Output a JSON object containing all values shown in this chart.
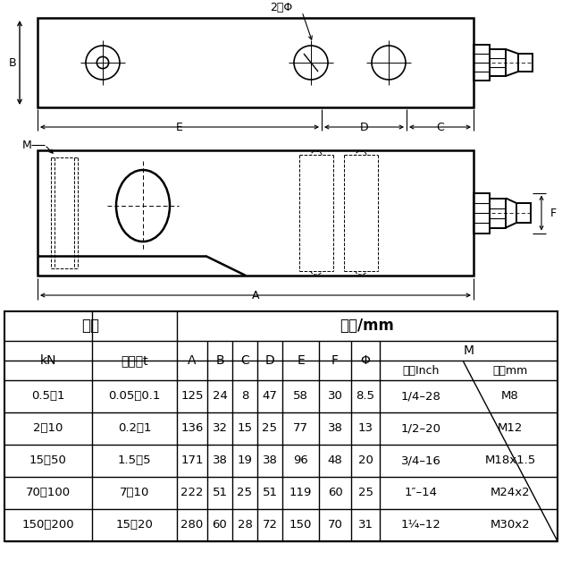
{
  "table_data": [
    [
      "0.5～1",
      "0.05～0.1",
      "125",
      "24",
      "8",
      "47",
      "58",
      "30",
      "8.5",
      "1/4–28",
      "M8"
    ],
    [
      "2～10",
      "0.2～1",
      "136",
      "32",
      "15",
      "25",
      "77",
      "38",
      "13",
      "1/2–20",
      "M12"
    ],
    [
      "15～50",
      "1.5～5",
      "171",
      "38",
      "19",
      "38",
      "96",
      "48",
      "20",
      "3/4–16",
      "M18x1.5"
    ],
    [
      "70～100",
      "7～10",
      "222",
      "51",
      "25",
      "51",
      "119",
      "60",
      "25",
      "1″–14",
      "M24x2"
    ],
    [
      "150～200",
      "15～20",
      "280",
      "60",
      "28",
      "72",
      "150",
      "70",
      "31",
      "1¼–12",
      "M30x2"
    ]
  ],
  "bg_color": "#ffffff",
  "line_color": "#000000"
}
